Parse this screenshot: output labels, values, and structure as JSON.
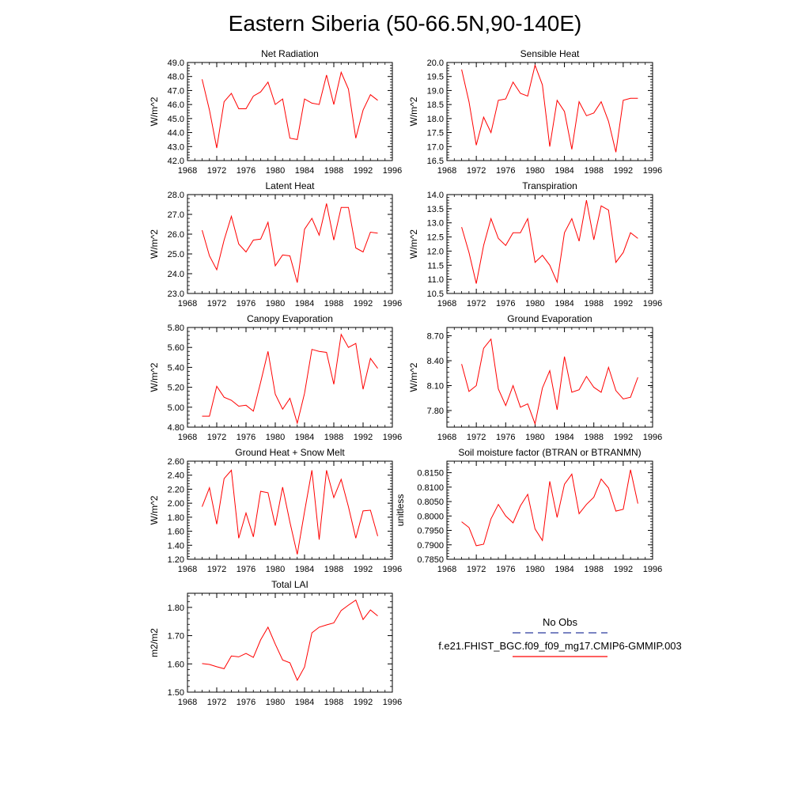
{
  "figure": {
    "title": "Eastern Siberia (50-66.5N,90-140E)"
  },
  "legend": {
    "entries": [
      {
        "label": "No Obs",
        "color": "#2a3a9e",
        "dash": true
      },
      {
        "label": "f.e21.FHIST_BGC.f09_f09_mg17.CMIP6-GMMIP.003",
        "color": "#ff0000",
        "dash": false
      }
    ]
  },
  "colors": {
    "model_line": "#ff0000",
    "obs_line": "#2a3a9e",
    "axis": "#000000"
  },
  "chart_data": [
    {
      "type": "line",
      "title": "Net Radiation",
      "ylabel": "W/m^2",
      "xlim": [
        1968,
        1996
      ],
      "xticks": [
        1968,
        1972,
        1976,
        1980,
        1984,
        1988,
        1992,
        1996
      ],
      "ylim": [
        42.0,
        49.0
      ],
      "yticks": [
        "42.0",
        "43.0",
        "44.0",
        "45.0",
        "46.0",
        "47.0",
        "48.0",
        "49.0"
      ],
      "series": [
        {
          "x": [
            1970,
            1971,
            1972,
            1973,
            1974,
            1975,
            1976,
            1977,
            1978,
            1979,
            1980,
            1981,
            1982,
            1983,
            1984,
            1985,
            1986,
            1987,
            1988,
            1989,
            1990,
            1991,
            1992,
            1993,
            1994
          ],
          "values": [
            47.8,
            45.6,
            42.9,
            46.2,
            46.8,
            45.7,
            45.7,
            46.6,
            46.9,
            47.6,
            46.0,
            46.4,
            43.6,
            43.5,
            46.4,
            46.1,
            46.0,
            48.1,
            46.0,
            48.3,
            47.1,
            43.6,
            45.6,
            46.7,
            46.3
          ]
        }
      ]
    },
    {
      "type": "line",
      "title": "Sensible Heat",
      "ylabel": "W/m^2",
      "xlim": [
        1968,
        1996
      ],
      "xticks": [
        1968,
        1972,
        1976,
        1980,
        1984,
        1988,
        1992,
        1996
      ],
      "ylim": [
        16.5,
        20.0
      ],
      "yticks": [
        "16.5",
        "17.0",
        "17.5",
        "18.0",
        "18.5",
        "19.0",
        "19.5",
        "20.0"
      ],
      "series": [
        {
          "x": [
            1970,
            1971,
            1972,
            1973,
            1974,
            1975,
            1976,
            1977,
            1978,
            1979,
            1980,
            1981,
            1982,
            1983,
            1984,
            1985,
            1986,
            1987,
            1988,
            1989,
            1990,
            1991,
            1992,
            1993,
            1994
          ],
          "values": [
            19.75,
            18.6,
            17.05,
            18.05,
            17.5,
            18.65,
            18.7,
            19.3,
            18.9,
            18.8,
            19.9,
            19.2,
            17.0,
            18.65,
            18.25,
            16.9,
            18.6,
            18.1,
            18.2,
            18.6,
            17.9,
            16.8,
            18.65,
            18.72,
            18.72
          ]
        }
      ]
    },
    {
      "type": "line",
      "title": "Latent Heat",
      "ylabel": "W/m^2",
      "xlim": [
        1968,
        1996
      ],
      "xticks": [
        1968,
        1972,
        1976,
        1980,
        1984,
        1988,
        1992,
        1996
      ],
      "ylim": [
        23.0,
        28.0
      ],
      "yticks": [
        "23.0",
        "24.0",
        "25.0",
        "26.0",
        "27.0",
        "28.0"
      ],
      "series": [
        {
          "x": [
            1970,
            1971,
            1972,
            1973,
            1974,
            1975,
            1976,
            1977,
            1978,
            1979,
            1980,
            1981,
            1982,
            1983,
            1984,
            1985,
            1986,
            1987,
            1988,
            1989,
            1990,
            1991,
            1992,
            1993,
            1994
          ],
          "values": [
            26.2,
            24.9,
            24.2,
            25.7,
            26.9,
            25.5,
            25.1,
            25.7,
            25.75,
            26.6,
            24.4,
            24.95,
            24.9,
            23.55,
            26.25,
            26.8,
            25.95,
            27.55,
            25.7,
            27.35,
            27.35,
            25.3,
            25.1,
            26.1,
            26.05
          ]
        }
      ]
    },
    {
      "type": "line",
      "title": "Transpiration",
      "ylabel": "W/m^2",
      "xlim": [
        1968,
        1996
      ],
      "xticks": [
        1968,
        1972,
        1976,
        1980,
        1984,
        1988,
        1992,
        1996
      ],
      "ylim": [
        10.5,
        14.0
      ],
      "yticks": [
        "10.5",
        "11.0",
        "11.5",
        "12.0",
        "12.5",
        "13.0",
        "13.5",
        "14.0"
      ],
      "series": [
        {
          "x": [
            1970,
            1971,
            1972,
            1973,
            1974,
            1975,
            1976,
            1977,
            1978,
            1979,
            1980,
            1981,
            1982,
            1983,
            1984,
            1985,
            1986,
            1987,
            1988,
            1989,
            1990,
            1991,
            1992,
            1993,
            1994
          ],
          "values": [
            12.85,
            11.95,
            10.85,
            12.2,
            13.15,
            12.45,
            12.2,
            12.65,
            12.65,
            13.15,
            11.6,
            11.85,
            11.5,
            10.9,
            12.65,
            13.15,
            12.35,
            13.8,
            12.4,
            13.6,
            13.45,
            11.6,
            11.95,
            12.65,
            12.45
          ]
        }
      ]
    },
    {
      "type": "line",
      "title": "Canopy Evaporation",
      "ylabel": "W/m^2",
      "xlim": [
        1968,
        1996
      ],
      "xticks": [
        1968,
        1972,
        1976,
        1980,
        1984,
        1988,
        1992,
        1996
      ],
      "ylim": [
        4.8,
        5.8
      ],
      "yticks": [
        "4.80",
        "5.00",
        "5.20",
        "5.40",
        "5.60",
        "5.80"
      ],
      "series": [
        {
          "x": [
            1970,
            1971,
            1972,
            1973,
            1974,
            1975,
            1976,
            1977,
            1978,
            1979,
            1980,
            1981,
            1982,
            1983,
            1984,
            1985,
            1986,
            1987,
            1988,
            1989,
            1990,
            1991,
            1992,
            1993,
            1994
          ],
          "values": [
            4.91,
            4.91,
            5.21,
            5.1,
            5.07,
            5.01,
            5.02,
            4.96,
            5.25,
            5.56,
            5.13,
            4.98,
            5.09,
            4.84,
            5.14,
            5.58,
            5.56,
            5.55,
            5.23,
            5.73,
            5.6,
            5.64,
            5.18,
            5.49,
            5.39
          ]
        }
      ]
    },
    {
      "type": "line",
      "title": "Ground Evaporation",
      "ylabel": "W/m^2",
      "xlim": [
        1968,
        1996
      ],
      "xticks": [
        1968,
        1972,
        1976,
        1980,
        1984,
        1988,
        1992,
        1996
      ],
      "ylim": [
        7.6,
        8.8
      ],
      "yticks": [
        "7.80",
        "8.10",
        "8.40",
        "8.70"
      ],
      "series": [
        {
          "x": [
            1970,
            1971,
            1972,
            1973,
            1974,
            1975,
            1976,
            1977,
            1978,
            1979,
            1980,
            1981,
            1982,
            1983,
            1984,
            1985,
            1986,
            1987,
            1988,
            1989,
            1990,
            1991,
            1992,
            1993,
            1994
          ],
          "values": [
            8.36,
            8.03,
            8.1,
            8.55,
            8.66,
            8.06,
            7.86,
            8.1,
            7.84,
            7.88,
            7.64,
            8.07,
            8.28,
            7.81,
            8.45,
            8.02,
            8.05,
            8.21,
            8.08,
            8.02,
            8.32,
            8.04,
            7.94,
            7.96,
            8.2
          ]
        }
      ]
    },
    {
      "type": "line",
      "title": "Ground Heat + Snow Melt",
      "ylabel": "W/m^2",
      "xlim": [
        1968,
        1996
      ],
      "xticks": [
        1968,
        1972,
        1976,
        1980,
        1984,
        1988,
        1992,
        1996
      ],
      "ylim": [
        1.2,
        2.6
      ],
      "yticks": [
        "1.20",
        "1.40",
        "1.60",
        "1.80",
        "2.00",
        "2.20",
        "2.40",
        "2.60"
      ],
      "series": [
        {
          "x": [
            1970,
            1971,
            1972,
            1973,
            1974,
            1975,
            1976,
            1977,
            1978,
            1979,
            1980,
            1981,
            1982,
            1983,
            1984,
            1985,
            1986,
            1987,
            1988,
            1989,
            1990,
            1991,
            1992,
            1993,
            1994
          ],
          "values": [
            1.95,
            2.22,
            1.7,
            2.35,
            2.47,
            1.5,
            1.86,
            1.52,
            2.17,
            2.15,
            1.68,
            2.23,
            1.73,
            1.27,
            1.88,
            2.47,
            1.48,
            2.47,
            2.08,
            2.34,
            1.95,
            1.5,
            1.89,
            1.9,
            1.53
          ]
        }
      ]
    },
    {
      "type": "line",
      "title": "Soil moisture factor (BTRAN or BTRANMN)",
      "ylabel": "unitless",
      "xlim": [
        1968,
        1996
      ],
      "xticks": [
        1968,
        1972,
        1976,
        1980,
        1984,
        1988,
        1992,
        1996
      ],
      "ylim": [
        0.785,
        0.819
      ],
      "yticks": [
        "0.7850",
        "0.7900",
        "0.7950",
        "0.8000",
        "0.8050",
        "0.8100",
        "0.8150"
      ],
      "series": [
        {
          "x": [
            1970,
            1971,
            1972,
            1973,
            1974,
            1975,
            1976,
            1977,
            1978,
            1979,
            1980,
            1981,
            1982,
            1983,
            1984,
            1985,
            1986,
            1987,
            1988,
            1989,
            1990,
            1991,
            1992,
            1993,
            1994
          ],
          "values": [
            0.798,
            0.796,
            0.7897,
            0.7902,
            0.799,
            0.804,
            0.8,
            0.7976,
            0.8035,
            0.8075,
            0.7955,
            0.7915,
            0.812,
            0.7995,
            0.811,
            0.8145,
            0.8008,
            0.804,
            0.8065,
            0.8128,
            0.8097,
            0.8017,
            0.8023,
            0.816,
            0.8043
          ]
        }
      ]
    },
    {
      "type": "line",
      "title": "Total LAI",
      "ylabel": "m2/m2",
      "xlim": [
        1968,
        1996
      ],
      "xticks": [
        1968,
        1972,
        1976,
        1980,
        1984,
        1988,
        1992,
        1996
      ],
      "ylim": [
        1.5,
        1.85
      ],
      "yticks": [
        "1.50",
        "1.60",
        "1.70",
        "1.80"
      ],
      "series": [
        {
          "x": [
            1970,
            1971,
            1972,
            1973,
            1974,
            1975,
            1976,
            1977,
            1978,
            1979,
            1980,
            1981,
            1982,
            1983,
            1984,
            1985,
            1986,
            1987,
            1988,
            1989,
            1990,
            1991,
            1992,
            1993,
            1994
          ],
          "values": [
            1.601,
            1.598,
            1.59,
            1.583,
            1.628,
            1.625,
            1.637,
            1.623,
            1.685,
            1.73,
            1.67,
            1.614,
            1.604,
            1.542,
            1.589,
            1.71,
            1.73,
            1.738,
            1.745,
            1.789,
            1.808,
            1.826,
            1.757,
            1.791,
            1.77
          ]
        }
      ]
    }
  ]
}
